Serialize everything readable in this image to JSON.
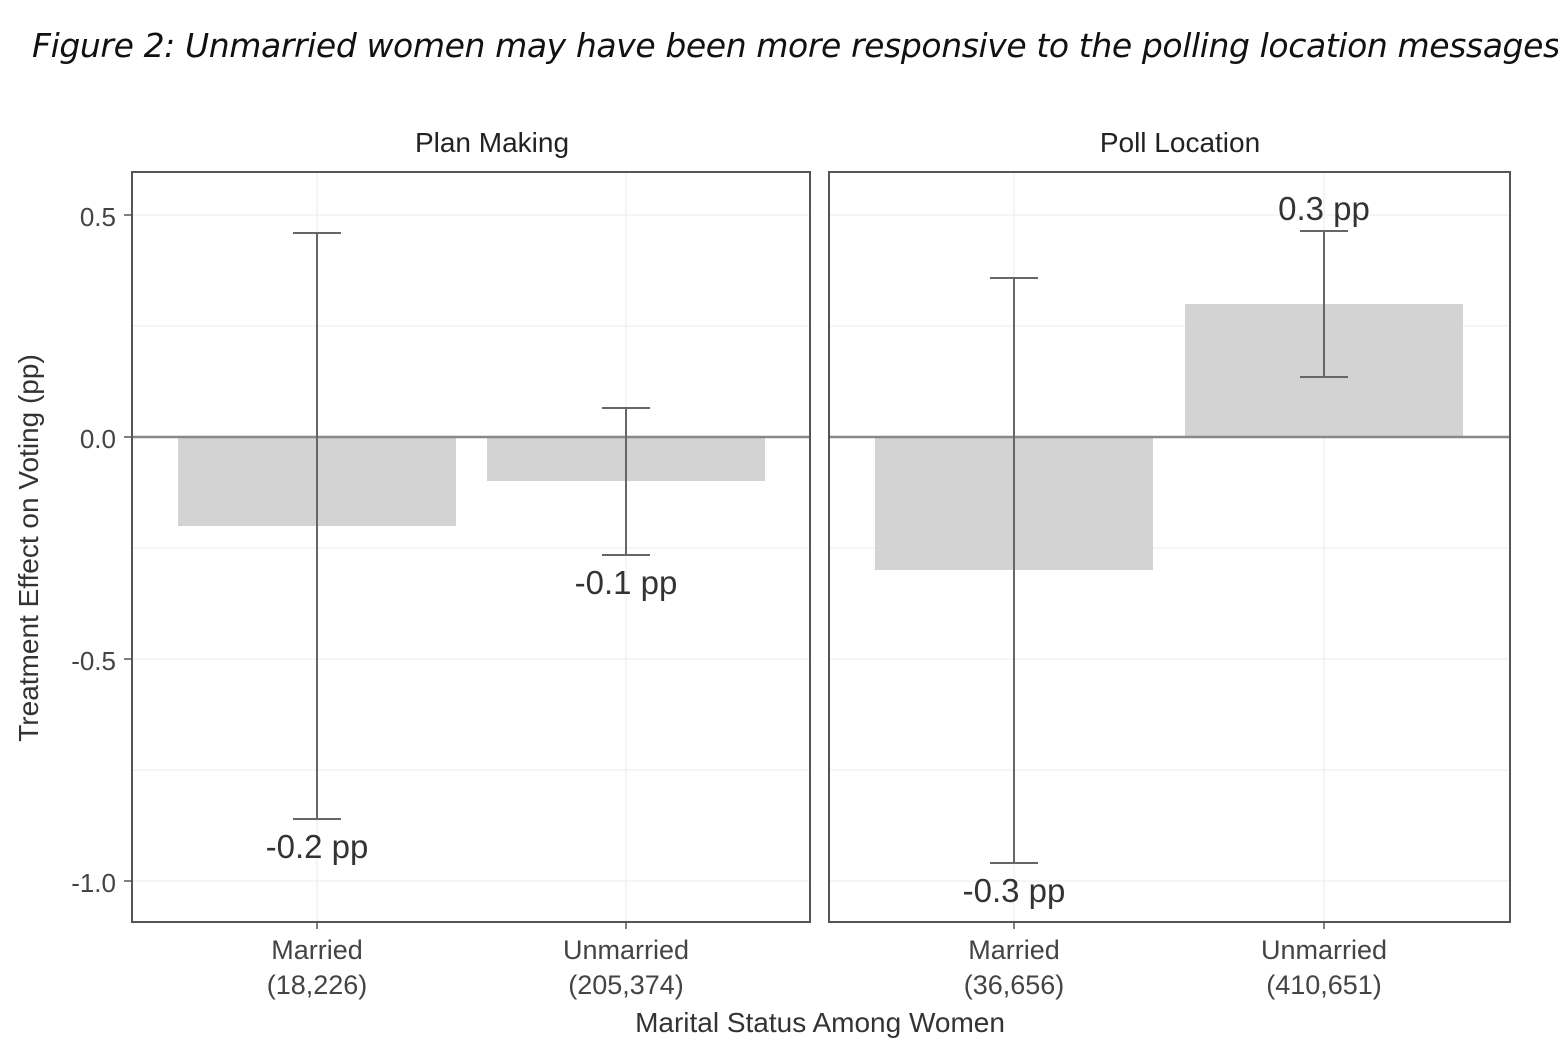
{
  "figure": {
    "caption": "Figure 2: Unmarried women may have been more responsive to the polling location messages"
  },
  "chart_data": {
    "type": "bar",
    "xlabel": "Marital Status Among Women",
    "ylabel": "Treatment Effect on Voting (pp)",
    "ylim": [
      -1.1,
      0.6
    ],
    "yticks": [
      0.5,
      0.0,
      -0.5,
      -1.0
    ],
    "ytick_labels": [
      "0.5",
      "0.0",
      "-0.5",
      "-1.0"
    ],
    "grid": true,
    "bar_color": "#d3d3d3",
    "panels": [
      {
        "title": "Plan Making",
        "bars": [
          {
            "category": "Married",
            "n_label": "(18,226)",
            "value": -0.2,
            "ci_low": -0.86,
            "ci_high": 0.46,
            "value_label": "-0.2 pp"
          },
          {
            "category": "Unmarried",
            "n_label": "(205,374)",
            "value": -0.1,
            "ci_low": -0.265,
            "ci_high": 0.065,
            "value_label": "-0.1 pp"
          }
        ]
      },
      {
        "title": "Poll Location",
        "bars": [
          {
            "category": "Married",
            "n_label": "(36,656)",
            "value": -0.3,
            "ci_low": -0.96,
            "ci_high": 0.36,
            "value_label": "-0.3 pp"
          },
          {
            "category": "Unmarried",
            "n_label": "(410,651)",
            "value": 0.3,
            "ci_low": 0.135,
            "ci_high": 0.465,
            "value_label": "0.3 pp"
          }
        ]
      }
    ]
  }
}
